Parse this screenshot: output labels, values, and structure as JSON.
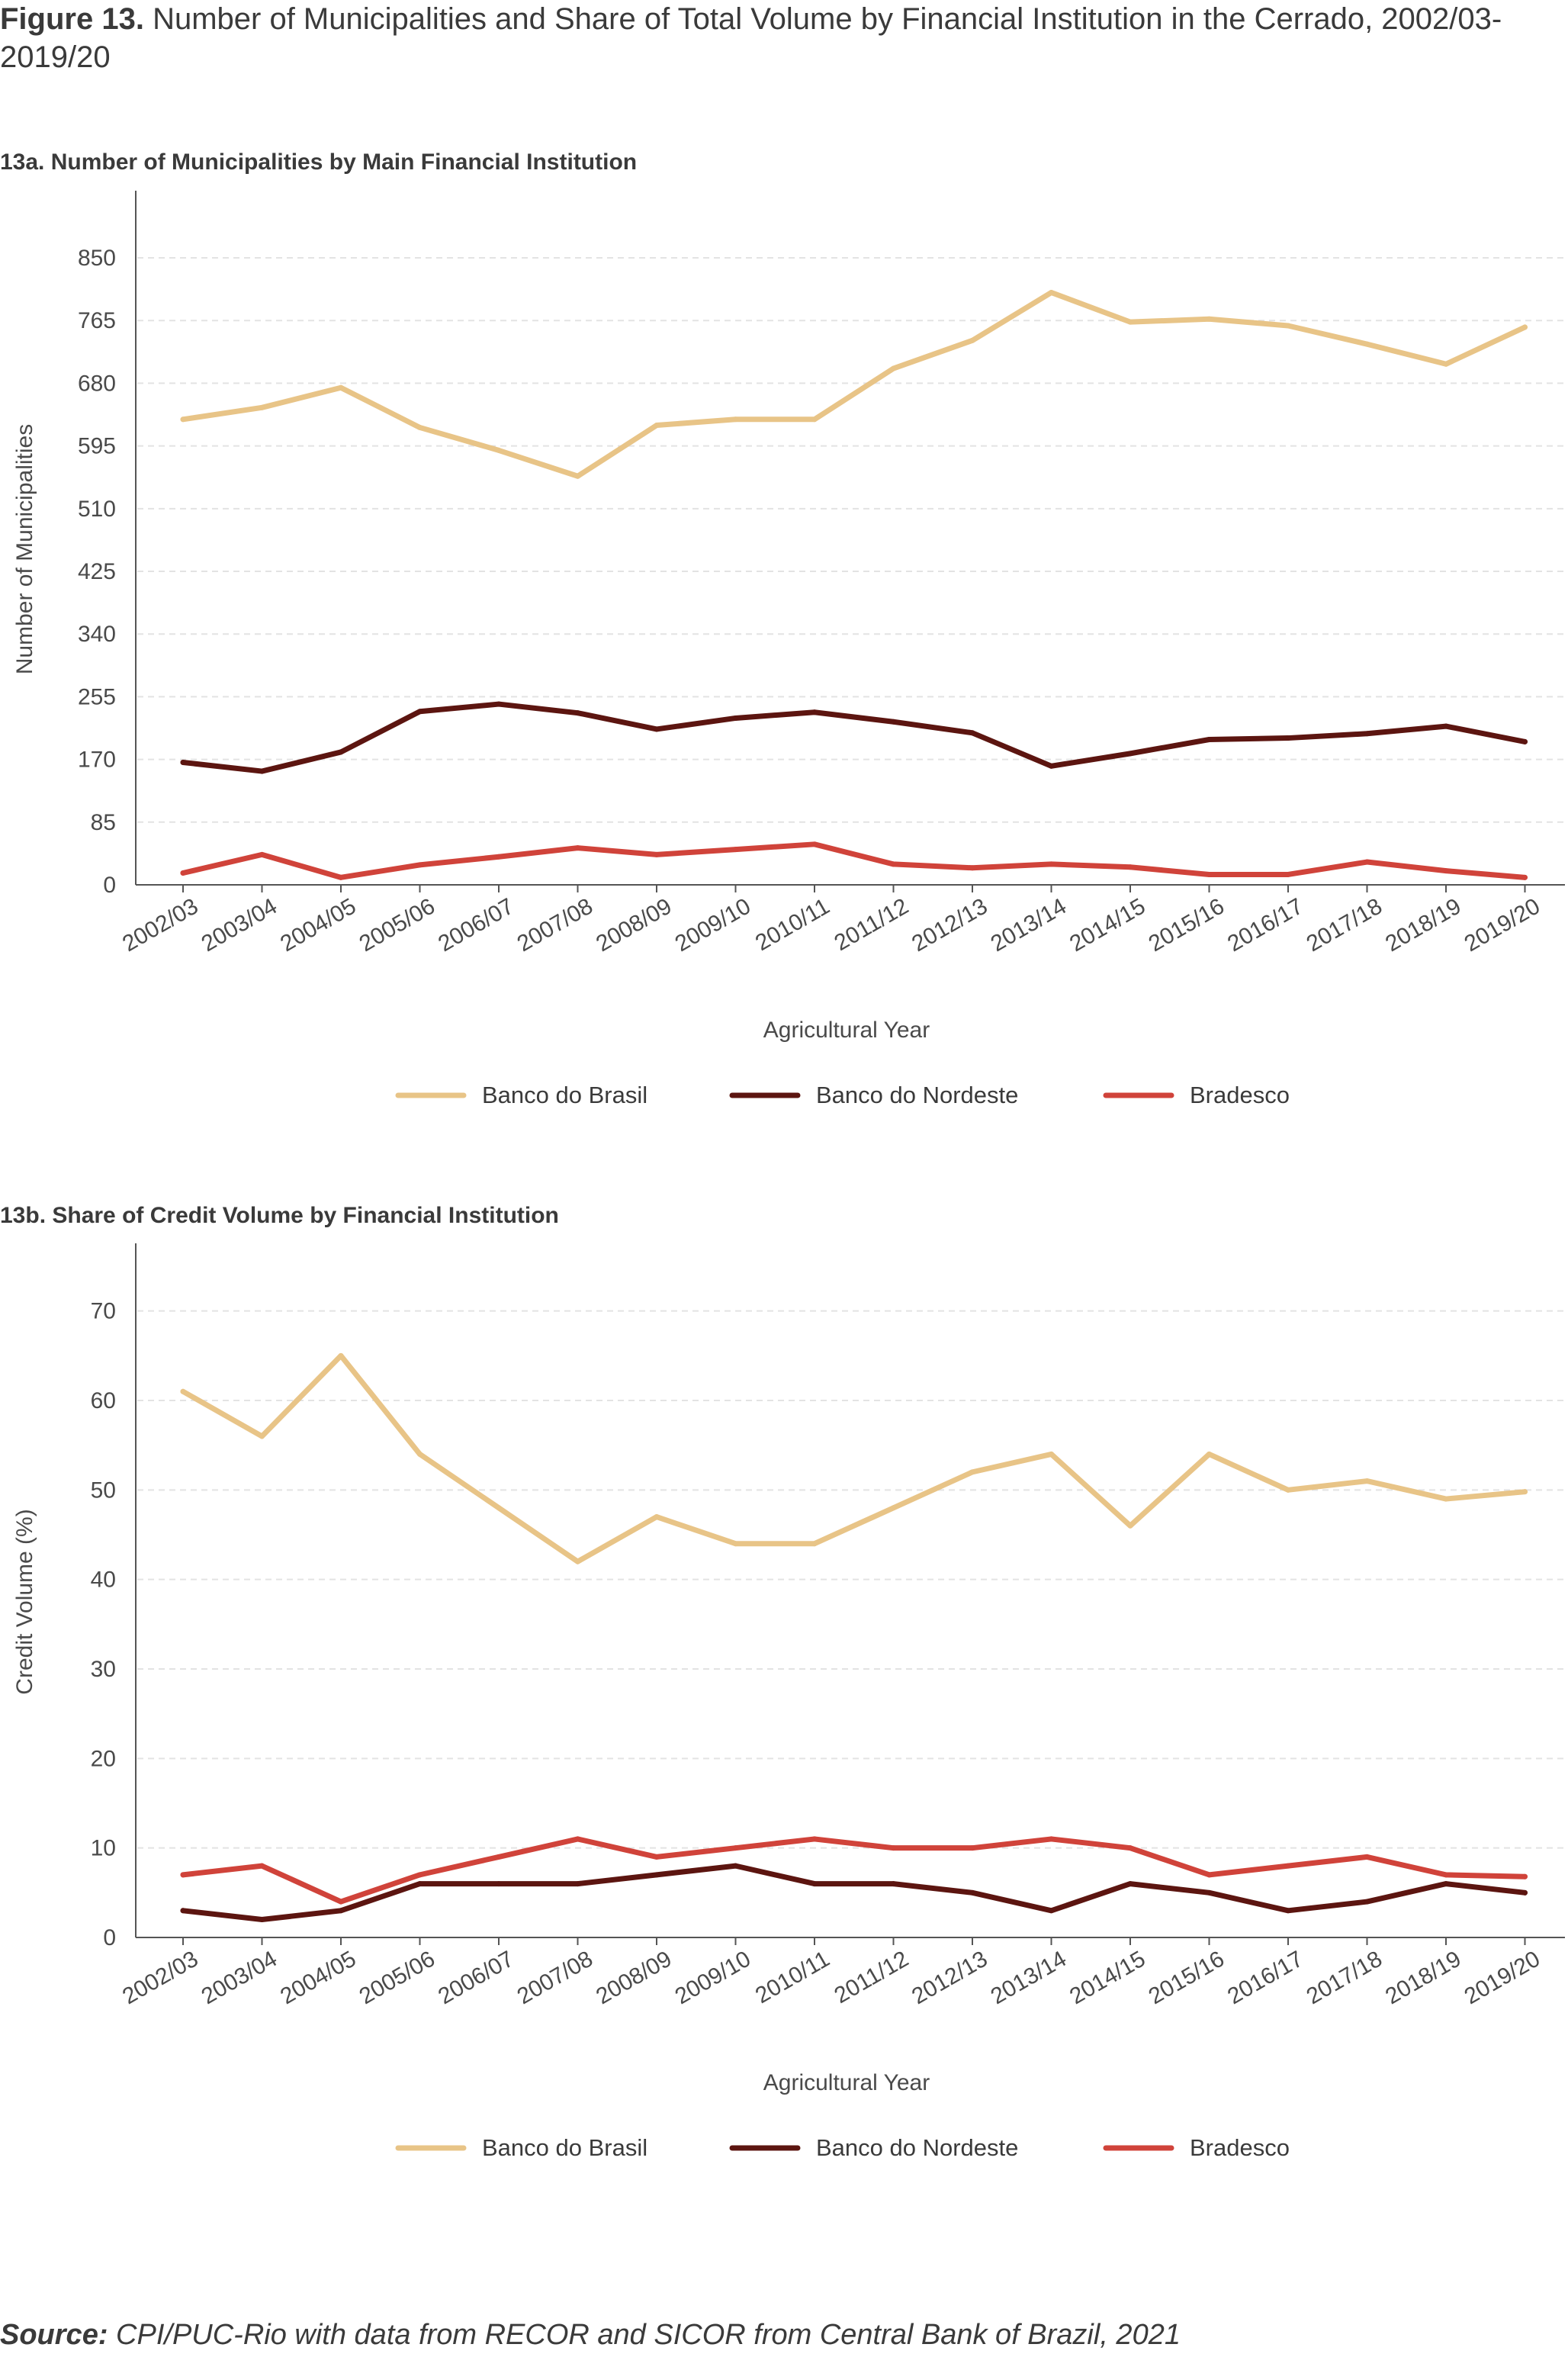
{
  "figure": {
    "label": "Figure 13.",
    "title": "Number of Municipalities and Share of Total Volume by Financial Institution in the Cerrado, 2002/03-2019/20"
  },
  "source": {
    "label": "Source:",
    "text": "CPI/PUC-Rio with data from RECOR and SICOR from Central Bank of Brazil, 2021"
  },
  "colors": {
    "banco_do_brasil": "#E8C487",
    "banco_do_nordeste": "#5C1510",
    "bradesco": "#D0433A",
    "grid": "#e3e3e3",
    "axis": "#555555"
  },
  "chart_data": [
    {
      "panel_title": "13a. Number of Municipalities by Main Financial Institution",
      "type": "line",
      "xlabel": "Agricultural Year",
      "ylabel": "Number of Municipalities",
      "ylim": [
        0,
        910
      ],
      "yticks": [
        0,
        85,
        170,
        255,
        340,
        425,
        510,
        595,
        680,
        765,
        850
      ],
      "grid": "horizontal dashed",
      "legend_position": "bottom",
      "categories": [
        "2002/03",
        "2003/04",
        "2004/05",
        "2005/06",
        "2006/07",
        "2007/08",
        "2008/09",
        "2009/10",
        "2010/11",
        "2011/12",
        "2012/13",
        "2013/14",
        "2014/15",
        "2015/16",
        "2016/17",
        "2017/18",
        "2018/19",
        "2019/20"
      ],
      "series": [
        {
          "name": "Banco do Brasil",
          "color": "#E8C487",
          "values": [
            631,
            647,
            674,
            620,
            589,
            554,
            623,
            631,
            631,
            700,
            738,
            803,
            763,
            767,
            758,
            733,
            706,
            756
          ]
        },
        {
          "name": "Banco do Nordeste",
          "color": "#5C1510",
          "values": [
            166,
            154,
            180,
            235,
            245,
            233,
            211,
            226,
            234,
            221,
            206,
            161,
            178,
            197,
            199,
            205,
            215,
            194
          ]
        },
        {
          "name": "Bradesco",
          "color": "#D0433A",
          "values": [
            16,
            41,
            10,
            27,
            38,
            50,
            41,
            48,
            55,
            28,
            23,
            28,
            24,
            14,
            14,
            31,
            19,
            10
          ]
        }
      ]
    },
    {
      "panel_title": "13b. Share of Credit Volume by Financial Institution",
      "type": "line",
      "xlabel": "Agricultural Year",
      "ylabel": "Credit Volume (%)",
      "ylim": [
        0,
        75
      ],
      "yticks": [
        0,
        10,
        20,
        30,
        40,
        50,
        60,
        70
      ],
      "grid": "horizontal dashed",
      "legend_position": "bottom",
      "categories": [
        "2002/03",
        "2003/04",
        "2004/05",
        "2005/06",
        "2006/07",
        "2007/08",
        "2008/09",
        "2009/10",
        "2010/11",
        "2011/12",
        "2012/13",
        "2013/14",
        "2014/15",
        "2015/16",
        "2016/17",
        "2017/18",
        "2018/19",
        "2019/20"
      ],
      "series": [
        {
          "name": "Banco do Brasil",
          "color": "#E8C487",
          "values": [
            61,
            56,
            65,
            54,
            48,
            42,
            47,
            44,
            44,
            48,
            52,
            54,
            46,
            54,
            50,
            51,
            49,
            49.8
          ]
        },
        {
          "name": "Banco do Nordeste",
          "color": "#5C1510",
          "values": [
            3,
            2,
            3,
            6,
            6,
            6,
            7,
            8,
            6,
            6,
            5,
            3,
            6,
            5,
            3,
            4,
            6,
            5
          ]
        },
        {
          "name": "Bradesco",
          "color": "#D0433A",
          "values": [
            7,
            8,
            4,
            7,
            9,
            11,
            9,
            10,
            11,
            10,
            10,
            11,
            10,
            7,
            8,
            9,
            7,
            6.8
          ]
        }
      ]
    }
  ]
}
